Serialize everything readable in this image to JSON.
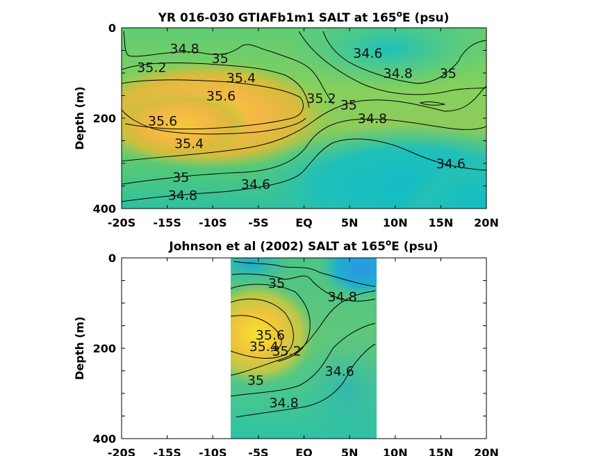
{
  "chart_data": [
    {
      "type": "heatmap",
      "title_main": "YR 016-030 GTIAFb1m1 SALT at 165",
      "title_deg": "o",
      "title_end": "E (psu)",
      "ylabel": "Depth (m)",
      "xlabel": "",
      "x_ticks": [
        "-20S",
        "-15S",
        "-10S",
        "-5S",
        "EQ",
        "5N",
        "10N",
        "15N",
        "20N"
      ],
      "y_ticks": [
        "0",
        "200",
        "400"
      ],
      "xlim": [
        -20,
        20
      ],
      "ylim": [
        0,
        400
      ],
      "contour_levels": [
        34.6,
        34.8,
        35.0,
        35.2,
        35.4,
        35.6
      ],
      "contour_labels": [
        {
          "text": "34.8",
          "lat": -13.1,
          "depth": 45
        },
        {
          "text": "35",
          "lat": -9.2,
          "depth": 67
        },
        {
          "text": "34.6",
          "lat": 7.0,
          "depth": 55
        },
        {
          "text": "35.2",
          "lat": -16.7,
          "depth": 87
        },
        {
          "text": "35.4",
          "lat": -6.9,
          "depth": 110
        },
        {
          "text": "34.8",
          "lat": 10.3,
          "depth": 100
        },
        {
          "text": "35",
          "lat": 15.8,
          "depth": 100
        },
        {
          "text": "35.6",
          "lat": -9.1,
          "depth": 150
        },
        {
          "text": "35.2",
          "lat": 1.9,
          "depth": 155
        },
        {
          "text": "35",
          "lat": 4.9,
          "depth": 170
        },
        {
          "text": "35.6",
          "lat": -15.5,
          "depth": 205
        },
        {
          "text": "34.8",
          "lat": 7.5,
          "depth": 200
        },
        {
          "text": "35.4",
          "lat": -12.6,
          "depth": 255
        },
        {
          "text": "34.6",
          "lat": 16.1,
          "depth": 300
        },
        {
          "text": "35",
          "lat": -13.5,
          "depth": 330
        },
        {
          "text": "34.6",
          "lat": -5.3,
          "depth": 345
        },
        {
          "text": "34.8",
          "lat": -13.3,
          "depth": 370
        }
      ]
    },
    {
      "type": "heatmap",
      "title_main": "Johnson et al (2002) SALT at 165",
      "title_deg": "o",
      "title_end": "E (psu)",
      "ylabel": "Depth (m)",
      "xlabel": "",
      "x_ticks": [
        "-20S",
        "-15S",
        "-10S",
        "-5S",
        "EQ",
        "5N",
        "10N",
        "15N",
        "20N"
      ],
      "y_ticks": [
        "0",
        "200",
        "400"
      ],
      "xlim": [
        -20,
        20
      ],
      "ylim": [
        0,
        400
      ],
      "data_lat_range": [
        -8,
        8
      ],
      "contour_levels": [
        34.6,
        34.8,
        35.0,
        35.2,
        35.4,
        35.6
      ],
      "contour_labels": [
        {
          "text": "35",
          "lat": -3.0,
          "depth": 55
        },
        {
          "text": "34.8",
          "lat": 4.2,
          "depth": 85
        },
        {
          "text": "35.6",
          "lat": -3.7,
          "depth": 170
        },
        {
          "text": "35.4",
          "lat": -4.4,
          "depth": 195
        },
        {
          "text": "35.2",
          "lat": -1.9,
          "depth": 205
        },
        {
          "text": "34.6",
          "lat": 3.9,
          "depth": 250
        },
        {
          "text": "35",
          "lat": -5.3,
          "depth": 270
        },
        {
          "text": "34.8",
          "lat": -2.2,
          "depth": 320
        }
      ]
    }
  ]
}
